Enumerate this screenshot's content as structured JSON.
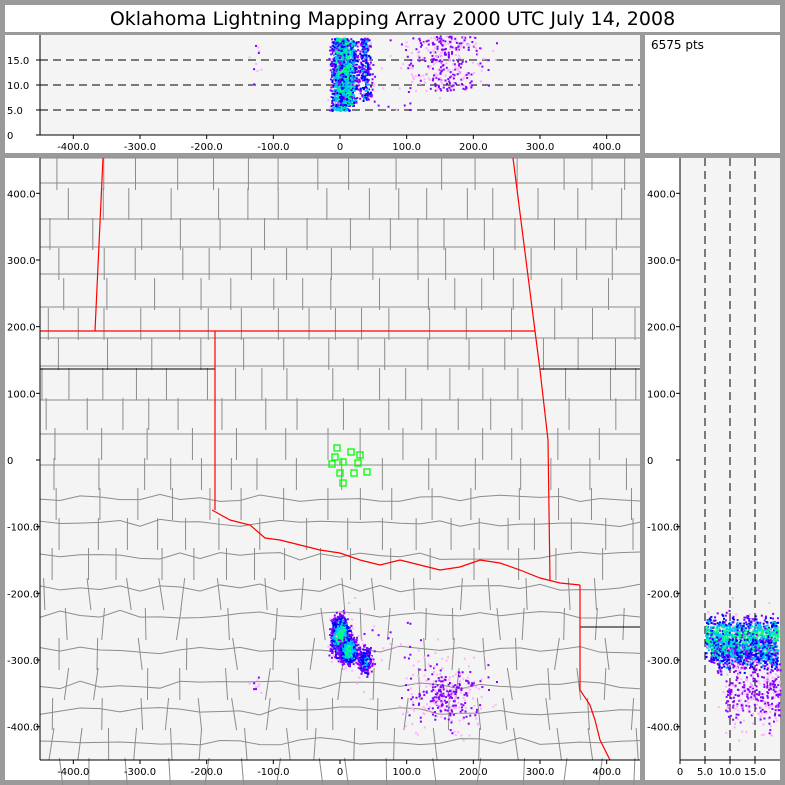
{
  "title": "Oklahoma Lightning Mapping Array   2000 UTC  July 14, 2008",
  "point_count": "6575 pts",
  "colors": {
    "frame": "#9a9a9a",
    "plot_bg": "#f4f4f4",
    "state_border": "#ff0000",
    "county": "#8c8c8c",
    "station": "#00ff00",
    "density": [
      "#ffb0ff",
      "#8800ff",
      "#0000ff",
      "#00c0ff",
      "#00ff80"
    ]
  },
  "chart_data": [
    {
      "type": "scatter",
      "panel": "altitude-vs-east-west",
      "xlim": [
        -450,
        450
      ],
      "ylim": [
        0,
        20
      ],
      "x_ticks": [
        "-400.0",
        "-300.0",
        "-200.0",
        "-100.0",
        "0",
        "100.0",
        "200.0",
        "300.0",
        "400.0"
      ],
      "x_tick_values": [
        -400,
        -300,
        -200,
        -100,
        0,
        100,
        200,
        300,
        400
      ],
      "y_ticks": [
        "0",
        "5.0",
        "10.0",
        "15.0"
      ],
      "y_tick_values": [
        0,
        5,
        10,
        15
      ],
      "dashed_lines": [
        5,
        10,
        15
      ]
    },
    {
      "type": "scatter",
      "panel": "plan-view-map",
      "xlim": [
        -450,
        450
      ],
      "ylim": [
        -450,
        452
      ],
      "x_ticks": [
        "-400.0",
        "-300.0",
        "-200.0",
        "-100.0",
        "0",
        "100.0",
        "200.0",
        "300.0",
        "400.0"
      ],
      "x_tick_values": [
        -400,
        -300,
        -200,
        -100,
        0,
        100,
        200,
        300,
        400
      ],
      "y_ticks": [
        "-400.0",
        "-300.0",
        "-200.0",
        "-100.0",
        "0",
        "100.0",
        "200.0",
        "300.0",
        "400.0"
      ],
      "y_tick_values": [
        -400,
        -300,
        -200,
        -100,
        0,
        100,
        200,
        300,
        400
      ],
      "stations": [
        [
          -4.5,
          18
        ],
        [
          16.5,
          12
        ],
        [
          30,
          7.5
        ],
        [
          -7.5,
          4.5
        ],
        [
          27,
          -4.5
        ],
        [
          -12,
          -6
        ],
        [
          4.5,
          -3
        ],
        [
          0,
          -19.5
        ],
        [
          21,
          -19.5
        ],
        [
          40.5,
          -18
        ],
        [
          4.5,
          -34.5
        ]
      ]
    },
    {
      "type": "scatter",
      "panel": "north-south-vs-altitude",
      "xlim": [
        0,
        20
      ],
      "ylim": [
        -450,
        452
      ],
      "x_ticks": [
        "0",
        "5.0",
        "10.0",
        "15.0"
      ],
      "x_tick_values": [
        0,
        5,
        10,
        15
      ],
      "y_ticks": [
        "-400.0",
        "-300.0",
        "-200.0",
        "-100.0",
        "0",
        "100.0",
        "200.0",
        "300.0",
        "400.0"
      ],
      "y_tick_values": [
        -400,
        -300,
        -200,
        -100,
        0,
        100,
        200,
        300,
        400
      ],
      "dashed_lines": [
        5,
        10,
        15
      ]
    },
    {
      "type": "scatter",
      "series_clusters": [
        {
          "x": 0,
          "y": -265,
          "sx": 7,
          "sy": 15,
          "z": [
            5,
            19.5
          ],
          "n": 3000,
          "dense": 1.0
        },
        {
          "x": 12,
          "y": -285,
          "sx": 7,
          "sy": 10,
          "z": [
            6,
            19
          ],
          "n": 1800,
          "dense": 0.9
        },
        {
          "x": 37,
          "y": -300,
          "sx": 5,
          "sy": 10,
          "z": [
            7,
            19.5
          ],
          "n": 700,
          "dense": 0.6
        },
        {
          "x": 160,
          "y": -350,
          "sx": 30,
          "sy": 25,
          "z": [
            9,
            20
          ],
          "n": 900,
          "dense": 0.15
        },
        {
          "x": -130,
          "y": -335,
          "sx": 6,
          "sy": 6,
          "z": [
            10,
            19
          ],
          "n": 30,
          "dense": 0.05
        },
        {
          "x": 80,
          "y": -300,
          "sx": 40,
          "sy": 40,
          "z": [
            5,
            20
          ],
          "n": 145,
          "dense": 0.0
        }
      ]
    }
  ]
}
